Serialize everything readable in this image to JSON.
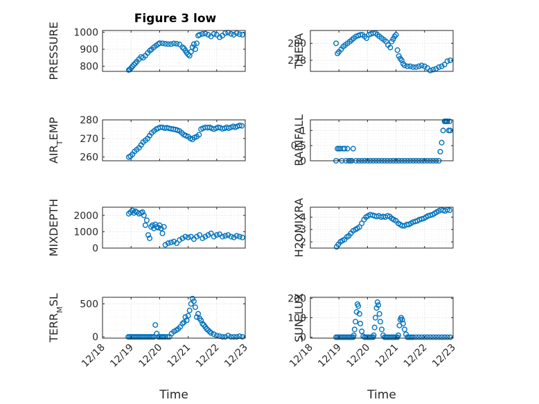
{
  "figure_title": "Figure 3 low",
  "marker_color": "#0072bd",
  "x_axis_ticks": [
    "12/18",
    "12/19",
    "12/20",
    "12/21",
    "12/22",
    "12/23"
  ],
  "x_axis_label": "Time",
  "chart_data": [
    {
      "type": "scatter",
      "ylabel": "PRESSURE",
      "ylim": [
        770,
        1010
      ],
      "yticks": [
        800,
        900,
        1000
      ],
      "ytick_labels": [
        "800",
        "900",
        "1000"
      ],
      "grid": "major+minor",
      "x": [
        18.92,
        18.96,
        19.0,
        19.05,
        19.1,
        19.15,
        19.2,
        19.28,
        19.35,
        19.42,
        19.5,
        19.58,
        19.66,
        19.72,
        19.8,
        19.88,
        19.95,
        20.0,
        20.1,
        20.2,
        20.3,
        20.4,
        20.5,
        20.6,
        20.7,
        20.8,
        20.85,
        20.9,
        20.95,
        21.0,
        21.05,
        21.1,
        21.15,
        21.2,
        21.25,
        21.3,
        21.35,
        21.4,
        21.5,
        21.6,
        21.7,
        21.8,
        21.9,
        22.0,
        22.1,
        22.2,
        22.3,
        22.4,
        22.5,
        22.6,
        22.7,
        22.8,
        22.9
      ],
      "y": [
        778,
        782,
        790,
        800,
        810,
        818,
        828,
        842,
        855,
        850,
        862,
        878,
        892,
        900,
        912,
        922,
        930,
        936,
        935,
        932,
        930,
        930,
        934,
        932,
        928,
        912,
        905,
        892,
        880,
        870,
        862,
        885,
        912,
        930,
        900,
        935,
        980,
        985,
        990,
        992,
        985,
        975,
        990,
        985,
        970,
        980,
        995,
        998,
        990,
        985,
        995,
        988,
        985
      ]
    },
    {
      "type": "scatter",
      "ylabel": "THETA",
      "ylim": [
        276.7,
        281.5
      ],
      "yticks": [
        278,
        280
      ],
      "ytick_labels": [
        "278",
        "280"
      ],
      "grid": "major+minor",
      "x": [
        18.9,
        18.95,
        19.0,
        19.08,
        19.15,
        19.22,
        19.3,
        19.38,
        19.45,
        19.52,
        19.6,
        19.68,
        19.75,
        19.82,
        19.9,
        19.97,
        20.05,
        20.12,
        20.2,
        20.28,
        20.35,
        20.42,
        20.5,
        20.58,
        20.65,
        20.72,
        20.8,
        20.85,
        20.9,
        20.95,
        21.0,
        21.05,
        21.1,
        21.15,
        21.2,
        21.25,
        21.3,
        21.4,
        21.5,
        21.6,
        21.7,
        21.8,
        21.9,
        22.0,
        22.1,
        22.2,
        22.3,
        22.4,
        22.5,
        22.6,
        22.7,
        22.8,
        22.9
      ],
      "y": [
        280.0,
        278.8,
        279.0,
        279.3,
        279.6,
        279.8,
        280.0,
        280.2,
        280.4,
        280.6,
        280.8,
        280.9,
        281.0,
        281.0,
        280.8,
        280.6,
        281.0,
        281.1,
        281.2,
        281.2,
        281.0,
        280.8,
        280.6,
        280.4,
        280.2,
        279.8,
        279.5,
        280.2,
        280.5,
        280.8,
        281.0,
        279.2,
        278.5,
        278.2,
        278.0,
        277.6,
        277.4,
        277.3,
        277.3,
        277.2,
        277.2,
        277.3,
        277.4,
        277.3,
        277.1,
        276.8,
        276.9,
        277.0,
        277.2,
        277.3,
        277.5,
        277.9,
        278.0
      ]
    },
    {
      "type": "scatter",
      "ylabel": "AIR_TEMP",
      "ylim": [
        258,
        280
      ],
      "yticks": [
        260,
        270,
        280
      ],
      "ytick_labels": [
        "260",
        "270",
        "280"
      ],
      "grid": "major+minor",
      "x": [
        18.92,
        18.98,
        19.05,
        19.12,
        19.2,
        19.28,
        19.35,
        19.42,
        19.5,
        19.58,
        19.65,
        19.72,
        19.8,
        19.88,
        19.95,
        20.02,
        20.1,
        20.18,
        20.25,
        20.32,
        20.4,
        20.48,
        20.55,
        20.62,
        20.7,
        20.78,
        20.85,
        20.92,
        21.0,
        21.08,
        21.15,
        21.22,
        21.3,
        21.38,
        21.45,
        21.52,
        21.6,
        21.68,
        21.75,
        21.82,
        21.9,
        21.98,
        22.05,
        22.12,
        22.2,
        22.28,
        22.35,
        22.42,
        22.5,
        22.58,
        22.65,
        22.72,
        22.8,
        22.88
      ],
      "y": [
        260,
        260.5,
        261.5,
        263,
        264,
        265,
        266.5,
        268,
        269,
        270,
        271.5,
        273,
        274,
        275,
        275.5,
        276,
        276,
        275.5,
        275.8,
        275.5,
        275.2,
        275,
        274.8,
        274.5,
        274,
        273,
        272,
        271.5,
        271,
        270,
        269.5,
        270.5,
        271,
        272,
        275,
        275.5,
        276,
        275.8,
        276,
        275.5,
        275,
        275.5,
        276,
        275.8,
        275.2,
        275.5,
        276,
        275.5,
        276,
        276.5,
        276,
        276.5,
        277,
        276.8
      ]
    },
    {
      "type": "scatter",
      "ylabel": "RAINFALL",
      "ylim": [
        0,
        1.35
      ],
      "yticks": [
        0,
        0.5,
        1
      ],
      "ytick_labels": [
        "0",
        "0.5",
        "1"
      ],
      "grid": "major+minor",
      "x": [
        18.9,
        18.95,
        19.0,
        19.05,
        19.1,
        19.15,
        19.2,
        19.25,
        19.3,
        19.35,
        19.4,
        19.45,
        19.5,
        19.6,
        19.7,
        19.8,
        19.9,
        20.0,
        20.1,
        20.2,
        20.3,
        20.4,
        20.5,
        20.6,
        20.7,
        20.8,
        20.9,
        21.0,
        21.1,
        21.2,
        21.3,
        21.4,
        21.5,
        21.6,
        21.7,
        21.8,
        21.9,
        22.0,
        22.1,
        22.2,
        22.3,
        22.4,
        22.5,
        22.55,
        22.6,
        22.65,
        22.7,
        22.72,
        22.75,
        22.78,
        22.8,
        22.85,
        22.88,
        22.9
      ],
      "y": [
        0,
        0.4,
        0.4,
        0.4,
        0,
        0.4,
        0.4,
        0,
        0.4,
        0,
        0,
        0,
        0.4,
        0,
        0,
        0,
        0,
        0,
        0,
        0,
        0,
        0,
        0,
        0,
        0,
        0,
        0,
        0,
        0,
        0,
        0,
        0,
        0,
        0,
        0,
        0,
        0,
        0,
        0,
        0,
        0,
        0,
        0,
        0.3,
        0.6,
        1.0,
        1.3,
        1.3,
        1.3,
        1.3,
        1.3,
        1.0,
        1.3,
        1.0
      ]
    },
    {
      "type": "scatter",
      "ylabel": "MIXDEPTH",
      "ylim": [
        0,
        2500
      ],
      "yticks": [
        0,
        1000,
        2000
      ],
      "ytick_labels": [
        "0",
        "1000",
        "2000"
      ],
      "grid": "major+minor",
      "x": [
        18.92,
        18.98,
        19.05,
        19.1,
        19.15,
        19.2,
        19.28,
        19.35,
        19.4,
        19.45,
        19.5,
        19.55,
        19.6,
        19.65,
        19.7,
        19.75,
        19.8,
        19.85,
        19.9,
        19.95,
        20.0,
        20.05,
        20.1,
        20.15,
        20.2,
        20.3,
        20.4,
        20.5,
        20.6,
        20.7,
        20.8,
        20.9,
        21.0,
        21.1,
        21.2,
        21.3,
        21.4,
        21.5,
        21.6,
        21.7,
        21.8,
        21.9,
        22.0,
        22.1,
        22.2,
        22.3,
        22.4,
        22.5,
        22.6,
        22.7,
        22.8,
        22.9
      ],
      "y": [
        2100,
        2200,
        2300,
        2150,
        2250,
        2200,
        2100,
        2150,
        2200,
        2000,
        1400,
        1700,
        800,
        600,
        1300,
        1400,
        1200,
        1450,
        1300,
        1250,
        1400,
        1200,
        900,
        1300,
        200,
        300,
        350,
        400,
        300,
        500,
        600,
        700,
        650,
        700,
        550,
        700,
        800,
        600,
        700,
        800,
        900,
        700,
        800,
        850,
        700,
        750,
        800,
        700,
        650,
        750,
        700,
        650
      ]
    },
    {
      "type": "scatter",
      "ylabel": "H2OMIXRA",
      "ylim": [
        1.5,
        4.8
      ],
      "yticks": [
        2,
        3,
        4
      ],
      "ytick_labels": [
        "2",
        "3",
        "4"
      ],
      "grid": "major+minor",
      "x": [
        18.92,
        18.98,
        19.05,
        19.12,
        19.2,
        19.28,
        19.35,
        19.42,
        19.5,
        19.58,
        19.65,
        19.72,
        19.8,
        19.88,
        19.95,
        20.02,
        20.1,
        20.18,
        20.25,
        20.32,
        20.4,
        20.48,
        20.55,
        20.62,
        20.7,
        20.78,
        20.85,
        20.92,
        21.0,
        21.08,
        21.15,
        21.22,
        21.3,
        21.38,
        21.45,
        21.52,
        21.6,
        21.68,
        21.75,
        21.82,
        21.9,
        21.98,
        22.05,
        22.12,
        22.2,
        22.28,
        22.35,
        22.42,
        22.5,
        22.58,
        22.65,
        22.72,
        22.8,
        22.88
      ],
      "y": [
        1.6,
        1.8,
        2.0,
        2.1,
        2.2,
        2.4,
        2.5,
        2.7,
        2.9,
        3.0,
        3.1,
        3.2,
        3.5,
        3.8,
        4.0,
        4.1,
        4.2,
        4.15,
        4.1,
        4.05,
        4.1,
        4.0,
        4.05,
        4.0,
        4.1,
        4.05,
        3.9,
        3.8,
        3.7,
        3.5,
        3.4,
        3.3,
        3.3,
        3.4,
        3.4,
        3.5,
        3.6,
        3.65,
        3.7,
        3.8,
        3.85,
        3.9,
        4.0,
        4.1,
        4.15,
        4.2,
        4.3,
        4.4,
        4.5,
        4.6,
        4.55,
        4.5,
        4.6,
        4.55
      ]
    },
    {
      "type": "scatter",
      "ylabel": "TERR_MSL",
      "ylim": [
        -20,
        600
      ],
      "yticks": [
        0,
        500
      ],
      "ytick_labels": [
        "0",
        "500"
      ],
      "grid": "major+minor",
      "x": [
        18.9,
        18.95,
        19.0,
        19.05,
        19.1,
        19.15,
        19.2,
        19.25,
        19.3,
        19.35,
        19.4,
        19.45,
        19.5,
        19.55,
        19.6,
        19.65,
        19.7,
        19.75,
        19.8,
        19.85,
        19.9,
        19.95,
        20.0,
        20.05,
        20.1,
        20.15,
        20.2,
        20.28,
        20.35,
        20.42,
        20.5,
        20.58,
        20.65,
        20.72,
        20.8,
        20.85,
        20.9,
        20.95,
        21.0,
        21.05,
        21.1,
        21.15,
        21.2,
        21.25,
        21.3,
        21.35,
        21.4,
        21.45,
        21.5,
        21.55,
        21.6,
        21.65,
        21.7,
        21.75,
        21.8,
        21.9,
        22.0,
        22.1,
        22.2,
        22.3,
        22.4,
        22.5,
        22.6,
        22.7,
        22.8,
        22.9
      ],
      "y": [
        0,
        0,
        0,
        0,
        0,
        0,
        0,
        0,
        0,
        0,
        0,
        0,
        0,
        0,
        0,
        0,
        0,
        0,
        0,
        180,
        50,
        0,
        0,
        0,
        0,
        0,
        0,
        0,
        0,
        50,
        80,
        100,
        120,
        150,
        200,
        220,
        300,
        250,
        320,
        400,
        500,
        580,
        540,
        450,
        300,
        350,
        280,
        250,
        200,
        180,
        150,
        120,
        100,
        80,
        60,
        40,
        20,
        10,
        0,
        0,
        20,
        0,
        0,
        0,
        10,
        0
      ]
    },
    {
      "type": "scatter",
      "ylabel": "SUN_FLUX",
      "ylim": [
        -5,
        205
      ],
      "yticks": [
        0,
        100,
        200
      ],
      "ytick_labels": [
        "0",
        "100",
        "200"
      ],
      "grid": "major+minor",
      "x": [
        18.9,
        18.95,
        19.0,
        19.05,
        19.1,
        19.15,
        19.2,
        19.25,
        19.3,
        19.35,
        19.4,
        19.45,
        19.5,
        19.52,
        19.55,
        19.58,
        19.62,
        19.65,
        19.68,
        19.72,
        19.75,
        19.8,
        19.85,
        19.9,
        19.95,
        20.0,
        20.05,
        20.1,
        20.15,
        20.2,
        20.22,
        20.25,
        20.28,
        20.32,
        20.35,
        20.38,
        20.42,
        20.45,
        20.5,
        20.55,
        20.6,
        20.65,
        20.7,
        20.75,
        20.8,
        20.85,
        20.9,
        20.95,
        21.0,
        21.05,
        21.08,
        21.12,
        21.15,
        21.18,
        21.22,
        21.25,
        21.3,
        21.35,
        21.4,
        21.45,
        21.5,
        21.55,
        21.6,
        21.7,
        21.8,
        21.9,
        22.0,
        22.1,
        22.2,
        22.3,
        22.4,
        22.5,
        22.6,
        22.7,
        22.8,
        22.9
      ],
      "y": [
        0,
        0,
        0,
        0,
        0,
        0,
        0,
        0,
        0,
        0,
        0,
        0,
        0,
        10,
        40,
        80,
        130,
        170,
        160,
        120,
        70,
        30,
        5,
        0,
        0,
        0,
        0,
        0,
        0,
        0,
        10,
        50,
        100,
        150,
        180,
        165,
        120,
        80,
        40,
        10,
        0,
        0,
        0,
        0,
        0,
        0,
        0,
        0,
        0,
        0,
        10,
        60,
        90,
        100,
        90,
        70,
        40,
        15,
        0,
        0,
        0,
        0,
        0,
        0,
        0,
        0,
        0,
        0,
        0,
        0,
        0,
        0,
        0,
        0,
        0,
        0
      ]
    }
  ]
}
